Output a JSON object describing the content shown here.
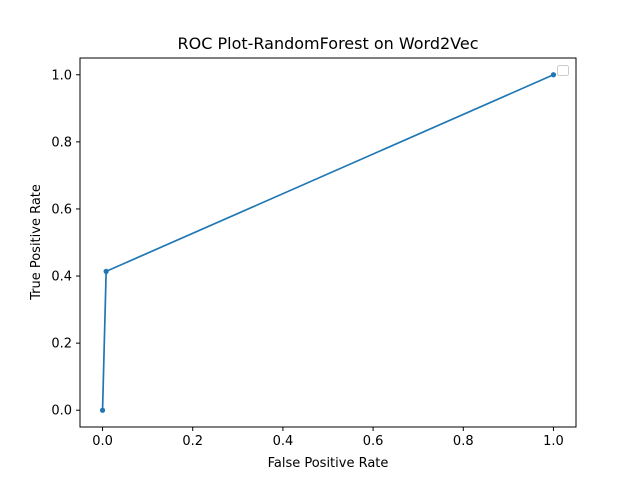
{
  "chart_data": {
    "type": "line",
    "title": "ROC Plot-RandomForest on Word2Vec",
    "xlabel": "False Positive Rate",
    "ylabel": "True Positive Rate",
    "xlim": [
      -0.05,
      1.05
    ],
    "ylim": [
      -0.05,
      1.05
    ],
    "x_ticks": [
      0.0,
      0.2,
      0.4,
      0.6,
      0.8,
      1.0
    ],
    "x_tick_labels": [
      "0.0",
      "0.2",
      "0.4",
      "0.6",
      "0.8",
      "1.0"
    ],
    "y_ticks": [
      0.0,
      0.2,
      0.4,
      0.6,
      0.8,
      1.0
    ],
    "y_tick_labels": [
      "0.0",
      "0.2",
      "0.4",
      "0.6",
      "0.8",
      "1.0"
    ],
    "grid": false,
    "legend": "top-right",
    "series": [
      {
        "color": "#1f77b4",
        "marker": "point",
        "x": [
          0.0,
          0.008,
          1.0
        ],
        "y": [
          0.0,
          0.414,
          1.0
        ]
      }
    ]
  }
}
